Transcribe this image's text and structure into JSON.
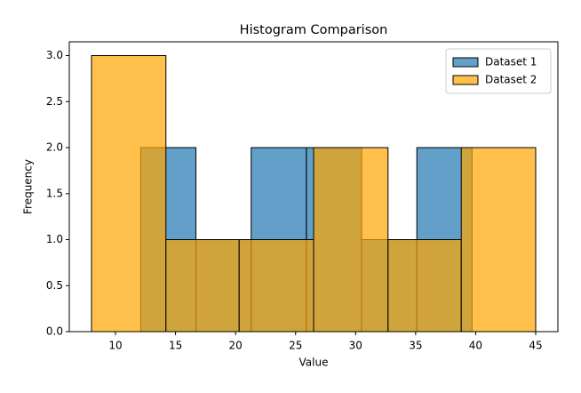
{
  "chart_data": {
    "type": "histogram",
    "title": "Histogram Comparison",
    "xlabel": "Value",
    "ylabel": "Frequency",
    "series": [
      {
        "name": "Dataset 1",
        "color": "#1f77b4",
        "bins": [
          12.1,
          16.7,
          21.3,
          25.9,
          30.5,
          35.1,
          39.7
        ],
        "values": [
          2,
          1,
          2,
          2,
          1,
          2
        ]
      },
      {
        "name": "Dataset 2",
        "color": "#ffa500",
        "bins": [
          8,
          14.2,
          20.3,
          26.5,
          32.7,
          38.8,
          45
        ],
        "values": [
          3,
          1,
          1,
          2,
          1,
          2
        ]
      }
    ],
    "alpha": 0.7,
    "edgecolor": "#000000",
    "xlim": [
      6.15,
      46.85
    ],
    "xticks": [
      10,
      15,
      20,
      25,
      30,
      35,
      40,
      45
    ],
    "ylim": [
      0,
      3.15
    ],
    "yticks": [
      {
        "value": 0,
        "label": "0.0"
      },
      0.5,
      {
        "value": 1,
        "label": "1.0"
      },
      1.5,
      {
        "value": 2,
        "label": "2.0"
      },
      2.5,
      {
        "value": 3,
        "label": "3.0"
      }
    ],
    "grid": false,
    "legend": "upper right"
  }
}
